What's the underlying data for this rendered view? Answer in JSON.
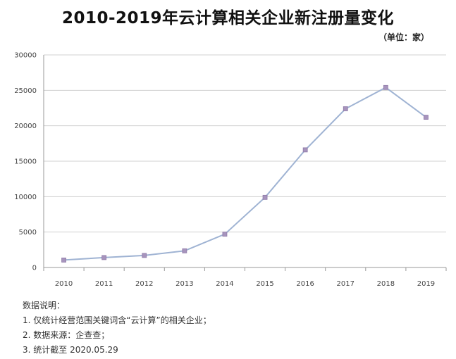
{
  "title": "2010-2019年云计算相关企业新注册量变化",
  "unit_label": "（单位：家）",
  "notes": {
    "heading": "数据说明：",
    "items": [
      "1. 仅统计经营范围关键词含“云计算”的相关企业；",
      "2. 数据来源：企查查；",
      "3. 统计截至 2020.05.29"
    ]
  },
  "colors": {
    "line": "#9fb3d3",
    "marker": "#a794bd",
    "grid": "#d0d0d0",
    "axis": "#999999"
  },
  "chart_data": {
    "type": "line",
    "title": "2010-2019年云计算相关企业新注册量变化",
    "xlabel": "",
    "ylabel": "",
    "categories": [
      "2010",
      "2011",
      "2012",
      "2013",
      "2014",
      "2015",
      "2016",
      "2017",
      "2018",
      "2019"
    ],
    "series": [
      {
        "values": [
          1050,
          1400,
          1700,
          2350,
          4700,
          9900,
          16600,
          22400,
          25400,
          21200
        ]
      }
    ],
    "ylim": [
      0,
      30000
    ],
    "yticks": [
      0,
      5000,
      10000,
      15000,
      20000,
      25000,
      30000
    ],
    "grid": true,
    "legend": "none"
  }
}
